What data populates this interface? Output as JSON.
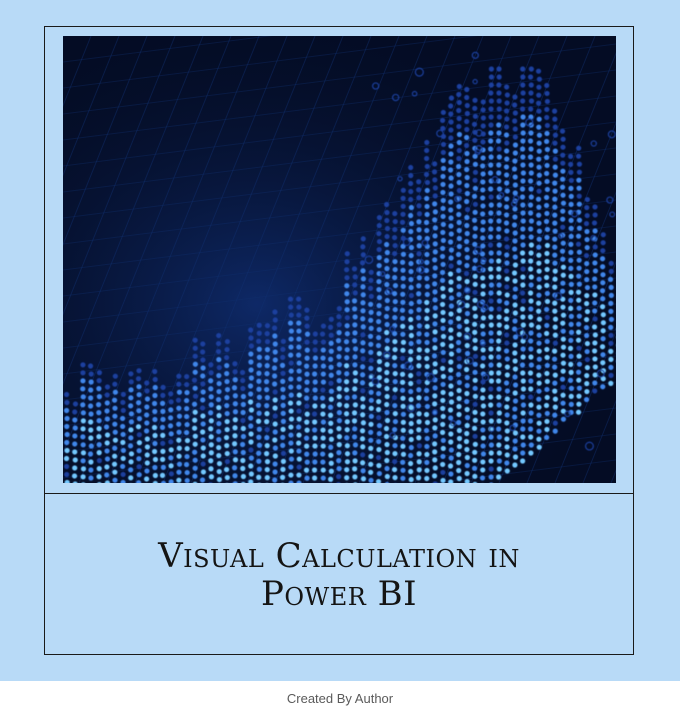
{
  "card": {
    "title_line1": "Visual Calculation in",
    "title_line2": "Power BI"
  },
  "hero_image": {
    "icon": "digital-dot-matrix-wave-image",
    "colors": {
      "background": "#040c24",
      "dot_dark": "#1b3f9e",
      "dot_mid": "#3f86ea",
      "dot_light": "#73c8ff"
    }
  },
  "colors": {
    "panel_background": "#b8daf7",
    "frame_border": "#1a1a1a",
    "title_text": "#141414",
    "caption_text": "#5a5a5a"
  },
  "caption": "Created By Author"
}
